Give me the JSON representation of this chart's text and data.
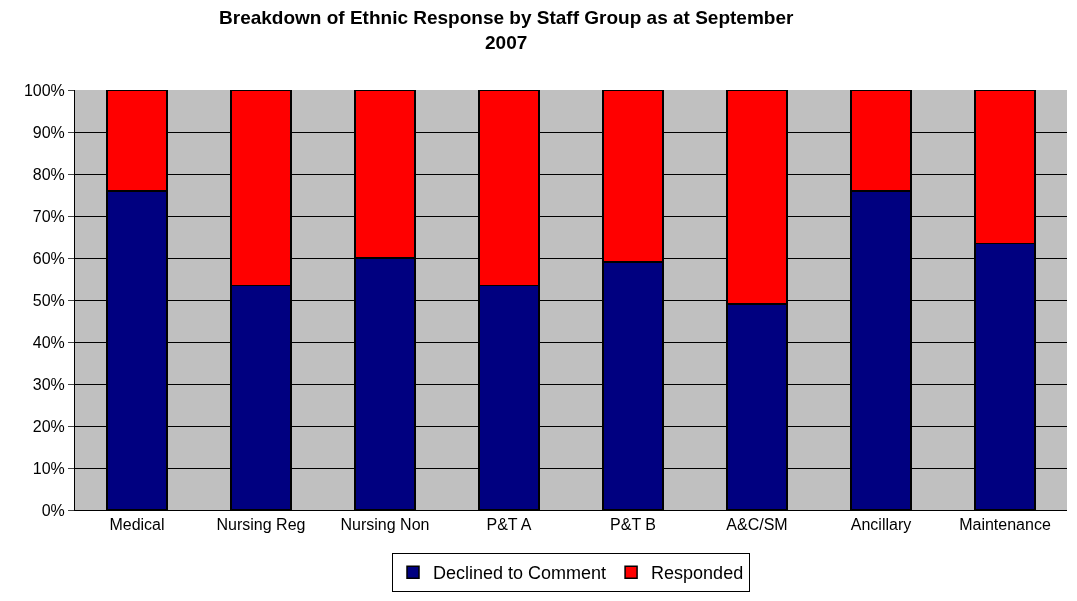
{
  "chart_data": {
    "type": "bar",
    "stacked": true,
    "title": "Breakdown of Ethnic Response by Staff Group as at September 2007",
    "categories": [
      "Medical",
      "Nursing Reg",
      "Nursing Non",
      "P&T A",
      "P&T B",
      "A&C/SM",
      "Ancillary",
      "Maintenance"
    ],
    "series": [
      {
        "name": "Declined to Comment",
        "color": "#000080",
        "values": [
          76,
          53.5,
          60,
          53.5,
          59,
          49,
          76,
          63.5
        ]
      },
      {
        "name": "Responded",
        "color": "#ff0000",
        "values": [
          24,
          46.5,
          40,
          46.5,
          41,
          51,
          24,
          36.5
        ]
      }
    ],
    "ylim": [
      0,
      100
    ],
    "yticks": [
      {
        "value": 0,
        "label": "0%"
      },
      {
        "value": 10,
        "label": "10%"
      },
      {
        "value": 20,
        "label": "20%"
      },
      {
        "value": 30,
        "label": "30%"
      },
      {
        "value": 40,
        "label": "40%"
      },
      {
        "value": 50,
        "label": "50%"
      },
      {
        "value": 60,
        "label": "60%"
      },
      {
        "value": 70,
        "label": "70%"
      },
      {
        "value": 80,
        "label": "80%"
      },
      {
        "value": 90,
        "label": "90%"
      },
      {
        "value": 100,
        "label": "100%"
      }
    ],
    "grid": "y",
    "legend": "bottom"
  }
}
